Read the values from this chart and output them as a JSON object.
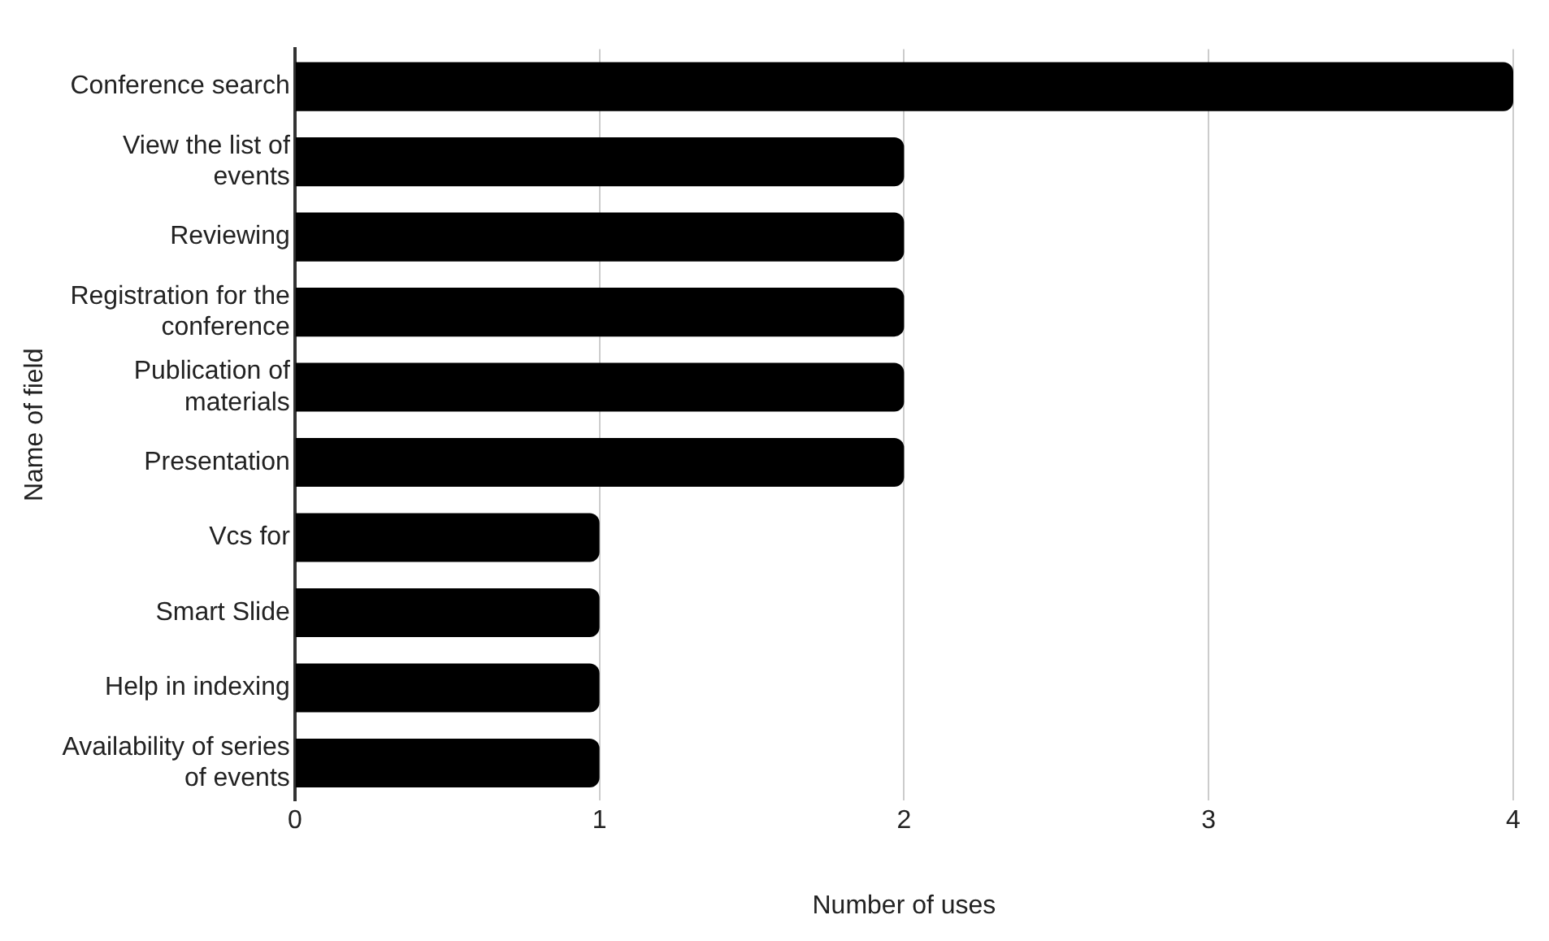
{
  "chart_data": {
    "type": "bar",
    "orientation": "horizontal",
    "categories": [
      "Conference search",
      "View the list of events",
      "Reviewing",
      "Registration for the conference",
      "Publication of materials",
      "Presentation",
      "Vcs for",
      "Smart Slide",
      "Help in indexing",
      "Availability of series of events"
    ],
    "values": [
      4,
      2,
      2,
      2,
      2,
      2,
      1,
      1,
      1,
      1
    ],
    "color": "#000000",
    "xlabel": "Number of uses",
    "ylabel": "Name of field",
    "xlim": [
      0,
      4
    ],
    "xticks": [
      0,
      1,
      2,
      3,
      4
    ],
    "grid": "x",
    "legend": false
  }
}
